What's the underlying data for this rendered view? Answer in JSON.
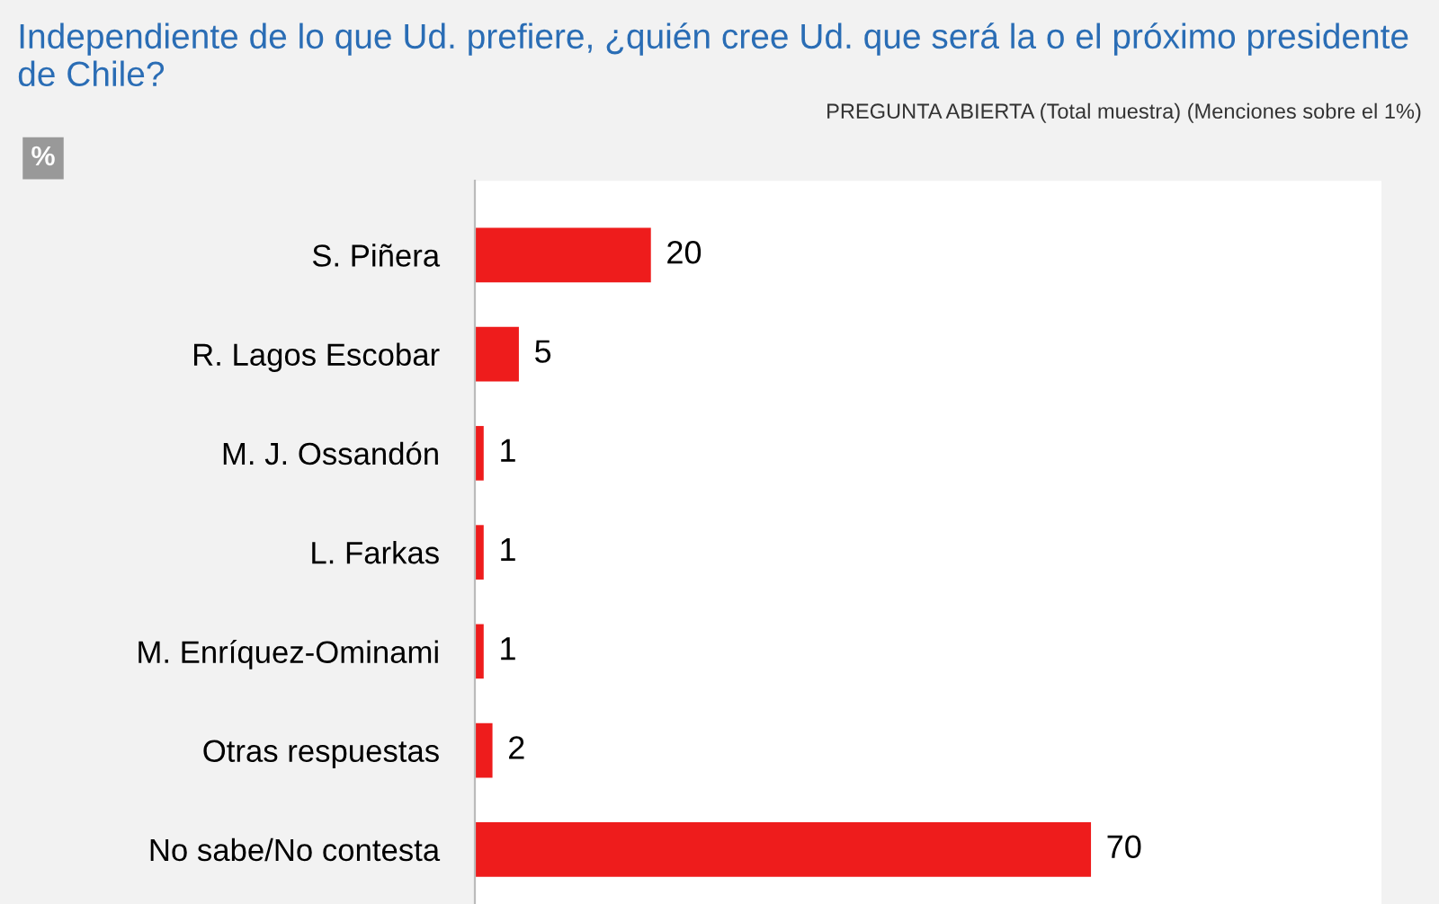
{
  "chart_data": {
    "type": "bar",
    "orientation": "horizontal",
    "title": "Independiente de lo que Ud. prefiere, ¿quién cree Ud. que será la o el próximo presidente de Chile?",
    "subtitle": "PREGUNTA ABIERTA (Total muestra) (Menciones sobre el 1%)",
    "annotations": [
      "%"
    ],
    "categories": [
      "S. Piñera",
      "R. Lagos Escobar",
      "M. J. Ossandón",
      "L. Farkas",
      "M. Enríquez-Ominami",
      "Otras respuestas",
      "No sabe/No contesta"
    ],
    "values": [
      20,
      5,
      1,
      1,
      1,
      2,
      70
    ],
    "color": "#ee1c1c",
    "xlim": [
      0,
      103
    ],
    "data_labels": true,
    "tick_labels": "y",
    "grid": false,
    "legend": false
  }
}
